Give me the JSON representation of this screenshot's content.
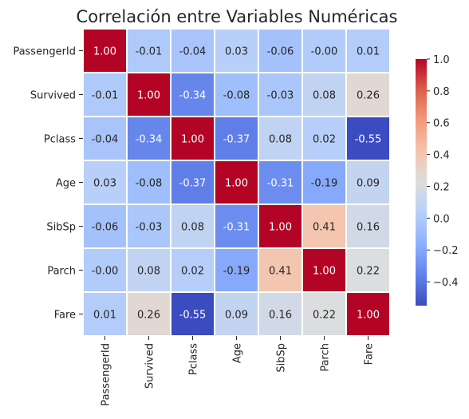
{
  "chart_data": {
    "type": "heatmap",
    "title": "Correlación entre Variables Numéricas",
    "xlabel": "",
    "ylabel": "",
    "variables": [
      "PassengerId",
      "Survived",
      "Pclass",
      "Age",
      "SibSp",
      "Parch",
      "Fare"
    ],
    "values": [
      [
        1.0,
        -0.01,
        -0.04,
        0.03,
        -0.06,
        -0.0,
        0.01
      ],
      [
        -0.01,
        1.0,
        -0.34,
        -0.08,
        -0.03,
        0.08,
        0.26
      ],
      [
        -0.04,
        -0.34,
        1.0,
        -0.37,
        0.08,
        0.02,
        -0.55
      ],
      [
        0.03,
        -0.08,
        -0.37,
        1.0,
        -0.31,
        -0.19,
        0.09
      ],
      [
        -0.06,
        -0.03,
        0.08,
        -0.31,
        1.0,
        0.41,
        0.16
      ],
      [
        -0.0,
        0.08,
        0.02,
        -0.19,
        0.41,
        1.0,
        0.22
      ],
      [
        0.01,
        0.26,
        -0.55,
        0.09,
        0.16,
        0.22,
        1.0
      ]
    ],
    "annotations": [
      [
        "1.00",
        "-0.01",
        "-0.04",
        "0.03",
        "-0.06",
        "-0.00",
        "0.01"
      ],
      [
        "-0.01",
        "1.00",
        "-0.34",
        "-0.08",
        "-0.03",
        "0.08",
        "0.26"
      ],
      [
        "-0.04",
        "-0.34",
        "1.00",
        "-0.37",
        "0.08",
        "0.02",
        "-0.55"
      ],
      [
        "0.03",
        "-0.08",
        "-0.37",
        "1.00",
        "-0.31",
        "-0.19",
        "0.09"
      ],
      [
        "-0.06",
        "-0.03",
        "0.08",
        "-0.31",
        "1.00",
        "0.41",
        "0.16"
      ],
      [
        "-0.00",
        "0.08",
        "0.02",
        "-0.19",
        "0.41",
        "1.00",
        "0.22"
      ],
      [
        "0.01",
        "0.26",
        "-0.55",
        "0.09",
        "0.16",
        "0.22",
        "1.00"
      ]
    ],
    "colormap": "coolwarm",
    "vmin": -0.55,
    "vmax": 1.0,
    "colorbar_ticks": [
      "1.0",
      "0.8",
      "0.6",
      "0.4",
      "0.2",
      "0.0",
      "−0.2",
      "−0.4"
    ],
    "colorbar_tick_values": [
      1.0,
      0.8,
      0.6,
      0.4,
      0.2,
      0.0,
      -0.2,
      -0.4
    ],
    "grid_line_color": "#ffffff",
    "grid": false,
    "legend": "colorbar-right",
    "x_tick_rotation": "vertical"
  }
}
